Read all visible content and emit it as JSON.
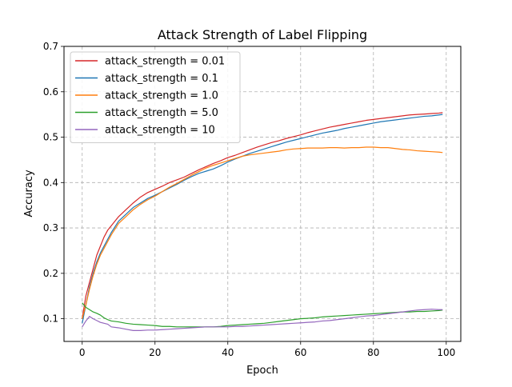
{
  "chart_data": {
    "type": "line",
    "title": "Attack Strength of Label Flipping",
    "xlabel": "Epoch",
    "ylabel": "Accuracy",
    "xlim": [
      -5,
      104
    ],
    "ylim": [
      0.05,
      0.7
    ],
    "xticks": [
      0,
      20,
      40,
      60,
      80,
      100
    ],
    "yticks": [
      0.1,
      0.2,
      0.3,
      0.4,
      0.5,
      0.6,
      0.7
    ],
    "xtick_labels": [
      "0",
      "20",
      "40",
      "60",
      "80",
      "100"
    ],
    "ytick_labels": [
      "0.1",
      "0.2",
      "0.3",
      "0.4",
      "0.5",
      "0.6",
      "0.7"
    ],
    "grid": true,
    "legend_position": "top-left",
    "series": [
      {
        "name": "attack_strength = 0.01",
        "color": "#d62728",
        "points": [
          [
            0,
            0.1
          ],
          [
            1,
            0.15
          ],
          [
            2,
            0.18
          ],
          [
            3,
            0.21
          ],
          [
            4,
            0.24
          ],
          [
            5,
            0.26
          ],
          [
            6,
            0.28
          ],
          [
            7,
            0.295
          ],
          [
            8,
            0.305
          ],
          [
            10,
            0.325
          ],
          [
            12,
            0.34
          ],
          [
            14,
            0.355
          ],
          [
            16,
            0.368
          ],
          [
            18,
            0.378
          ],
          [
            20,
            0.385
          ],
          [
            22,
            0.392
          ],
          [
            24,
            0.4
          ],
          [
            26,
            0.406
          ],
          [
            28,
            0.412
          ],
          [
            30,
            0.42
          ],
          [
            32,
            0.428
          ],
          [
            34,
            0.435
          ],
          [
            36,
            0.442
          ],
          [
            38,
            0.448
          ],
          [
            40,
            0.455
          ],
          [
            42,
            0.46
          ],
          [
            44,
            0.466
          ],
          [
            46,
            0.472
          ],
          [
            48,
            0.478
          ],
          [
            50,
            0.483
          ],
          [
            52,
            0.488
          ],
          [
            54,
            0.492
          ],
          [
            56,
            0.497
          ],
          [
            58,
            0.501
          ],
          [
            60,
            0.505
          ],
          [
            62,
            0.51
          ],
          [
            64,
            0.514
          ],
          [
            66,
            0.518
          ],
          [
            68,
            0.522
          ],
          [
            70,
            0.525
          ],
          [
            72,
            0.528
          ],
          [
            74,
            0.531
          ],
          [
            76,
            0.534
          ],
          [
            78,
            0.537
          ],
          [
            80,
            0.539
          ],
          [
            82,
            0.541
          ],
          [
            84,
            0.543
          ],
          [
            86,
            0.545
          ],
          [
            88,
            0.547
          ],
          [
            90,
            0.549
          ],
          [
            92,
            0.55
          ],
          [
            94,
            0.551
          ],
          [
            96,
            0.552
          ],
          [
            98,
            0.553
          ],
          [
            99,
            0.554
          ]
        ]
      },
      {
        "name": "attack_strength = 0.1",
        "color": "#1f77b4",
        "points": [
          [
            0,
            0.09
          ],
          [
            1,
            0.13
          ],
          [
            2,
            0.17
          ],
          [
            3,
            0.2
          ],
          [
            4,
            0.225
          ],
          [
            5,
            0.245
          ],
          [
            6,
            0.26
          ],
          [
            7,
            0.275
          ],
          [
            8,
            0.29
          ],
          [
            10,
            0.315
          ],
          [
            12,
            0.33
          ],
          [
            14,
            0.345
          ],
          [
            16,
            0.355
          ],
          [
            18,
            0.365
          ],
          [
            20,
            0.372
          ],
          [
            22,
            0.38
          ],
          [
            24,
            0.388
          ],
          [
            26,
            0.396
          ],
          [
            28,
            0.405
          ],
          [
            30,
            0.413
          ],
          [
            32,
            0.42
          ],
          [
            34,
            0.425
          ],
          [
            36,
            0.43
          ],
          [
            38,
            0.437
          ],
          [
            40,
            0.445
          ],
          [
            42,
            0.452
          ],
          [
            44,
            0.458
          ],
          [
            46,
            0.464
          ],
          [
            48,
            0.469
          ],
          [
            50,
            0.474
          ],
          [
            52,
            0.479
          ],
          [
            54,
            0.484
          ],
          [
            56,
            0.489
          ],
          [
            58,
            0.493
          ],
          [
            60,
            0.497
          ],
          [
            62,
            0.501
          ],
          [
            64,
            0.505
          ],
          [
            66,
            0.509
          ],
          [
            68,
            0.512
          ],
          [
            70,
            0.515
          ],
          [
            72,
            0.519
          ],
          [
            74,
            0.522
          ],
          [
            76,
            0.525
          ],
          [
            78,
            0.528
          ],
          [
            80,
            0.531
          ],
          [
            82,
            0.534
          ],
          [
            84,
            0.536
          ],
          [
            86,
            0.538
          ],
          [
            88,
            0.54
          ],
          [
            90,
            0.542
          ],
          [
            92,
            0.544
          ],
          [
            94,
            0.546
          ],
          [
            96,
            0.547
          ],
          [
            98,
            0.549
          ],
          [
            99,
            0.55
          ]
        ]
      },
      {
        "name": "attack_strength = 1.0",
        "color": "#ff7f0e",
        "points": [
          [
            0,
            0.1
          ],
          [
            1,
            0.13
          ],
          [
            2,
            0.165
          ],
          [
            3,
            0.195
          ],
          [
            4,
            0.22
          ],
          [
            5,
            0.24
          ],
          [
            6,
            0.255
          ],
          [
            7,
            0.27
          ],
          [
            8,
            0.285
          ],
          [
            10,
            0.31
          ],
          [
            12,
            0.325
          ],
          [
            14,
            0.34
          ],
          [
            16,
            0.352
          ],
          [
            18,
            0.362
          ],
          [
            20,
            0.37
          ],
          [
            22,
            0.38
          ],
          [
            24,
            0.39
          ],
          [
            26,
            0.398
          ],
          [
            28,
            0.407
          ],
          [
            30,
            0.416
          ],
          [
            32,
            0.424
          ],
          [
            34,
            0.432
          ],
          [
            36,
            0.438
          ],
          [
            38,
            0.443
          ],
          [
            40,
            0.448
          ],
          [
            42,
            0.453
          ],
          [
            44,
            0.458
          ],
          [
            46,
            0.461
          ],
          [
            48,
            0.463
          ],
          [
            50,
            0.465
          ],
          [
            52,
            0.467
          ],
          [
            54,
            0.469
          ],
          [
            56,
            0.472
          ],
          [
            58,
            0.474
          ],
          [
            60,
            0.475
          ],
          [
            62,
            0.476
          ],
          [
            64,
            0.476
          ],
          [
            66,
            0.476
          ],
          [
            68,
            0.477
          ],
          [
            70,
            0.477
          ],
          [
            72,
            0.476
          ],
          [
            74,
            0.477
          ],
          [
            76,
            0.477
          ],
          [
            78,
            0.478
          ],
          [
            80,
            0.478
          ],
          [
            82,
            0.477
          ],
          [
            84,
            0.477
          ],
          [
            86,
            0.475
          ],
          [
            88,
            0.473
          ],
          [
            90,
            0.472
          ],
          [
            92,
            0.47
          ],
          [
            94,
            0.469
          ],
          [
            96,
            0.468
          ],
          [
            98,
            0.467
          ],
          [
            99,
            0.466
          ]
        ]
      },
      {
        "name": "attack_strength = 5.0",
        "color": "#2ca02c",
        "points": [
          [
            0,
            0.135
          ],
          [
            1,
            0.125
          ],
          [
            2,
            0.12
          ],
          [
            3,
            0.115
          ],
          [
            4,
            0.112
          ],
          [
            5,
            0.108
          ],
          [
            6,
            0.102
          ],
          [
            7,
            0.098
          ],
          [
            8,
            0.095
          ],
          [
            10,
            0.093
          ],
          [
            12,
            0.09
          ],
          [
            14,
            0.088
          ],
          [
            16,
            0.087
          ],
          [
            18,
            0.086
          ],
          [
            20,
            0.085
          ],
          [
            22,
            0.083
          ],
          [
            24,
            0.083
          ],
          [
            26,
            0.082
          ],
          [
            28,
            0.082
          ],
          [
            30,
            0.082
          ],
          [
            32,
            0.082
          ],
          [
            34,
            0.082
          ],
          [
            36,
            0.082
          ],
          [
            38,
            0.083
          ],
          [
            40,
            0.085
          ],
          [
            42,
            0.086
          ],
          [
            44,
            0.087
          ],
          [
            46,
            0.088
          ],
          [
            48,
            0.089
          ],
          [
            50,
            0.09
          ],
          [
            52,
            0.092
          ],
          [
            54,
            0.094
          ],
          [
            56,
            0.096
          ],
          [
            58,
            0.098
          ],
          [
            60,
            0.1
          ],
          [
            62,
            0.101
          ],
          [
            64,
            0.102
          ],
          [
            66,
            0.104
          ],
          [
            68,
            0.105
          ],
          [
            70,
            0.106
          ],
          [
            72,
            0.107
          ],
          [
            74,
            0.108
          ],
          [
            76,
            0.109
          ],
          [
            78,
            0.11
          ],
          [
            80,
            0.111
          ],
          [
            82,
            0.112
          ],
          [
            84,
            0.113
          ],
          [
            86,
            0.114
          ],
          [
            88,
            0.115
          ],
          [
            90,
            0.115
          ],
          [
            92,
            0.116
          ],
          [
            94,
            0.116
          ],
          [
            96,
            0.117
          ],
          [
            98,
            0.118
          ],
          [
            99,
            0.119
          ]
        ]
      },
      {
        "name": "attack_strength = 10",
        "color": "#9467bd",
        "points": [
          [
            0,
            0.082
          ],
          [
            1,
            0.095
          ],
          [
            2,
            0.105
          ],
          [
            3,
            0.1
          ],
          [
            4,
            0.096
          ],
          [
            5,
            0.092
          ],
          [
            6,
            0.09
          ],
          [
            7,
            0.088
          ],
          [
            8,
            0.082
          ],
          [
            10,
            0.08
          ],
          [
            12,
            0.077
          ],
          [
            14,
            0.074
          ],
          [
            16,
            0.074
          ],
          [
            18,
            0.075
          ],
          [
            20,
            0.075
          ],
          [
            22,
            0.076
          ],
          [
            24,
            0.077
          ],
          [
            26,
            0.078
          ],
          [
            28,
            0.079
          ],
          [
            30,
            0.08
          ],
          [
            32,
            0.081
          ],
          [
            34,
            0.082
          ],
          [
            36,
            0.082
          ],
          [
            38,
            0.082
          ],
          [
            40,
            0.082
          ],
          [
            42,
            0.083
          ],
          [
            44,
            0.083
          ],
          [
            46,
            0.084
          ],
          [
            48,
            0.085
          ],
          [
            50,
            0.086
          ],
          [
            52,
            0.087
          ],
          [
            54,
            0.088
          ],
          [
            56,
            0.089
          ],
          [
            58,
            0.09
          ],
          [
            60,
            0.091
          ],
          [
            62,
            0.092
          ],
          [
            64,
            0.093
          ],
          [
            66,
            0.095
          ],
          [
            68,
            0.096
          ],
          [
            70,
            0.098
          ],
          [
            72,
            0.1
          ],
          [
            74,
            0.102
          ],
          [
            76,
            0.104
          ],
          [
            78,
            0.106
          ],
          [
            80,
            0.107
          ],
          [
            82,
            0.109
          ],
          [
            84,
            0.111
          ],
          [
            86,
            0.113
          ],
          [
            88,
            0.115
          ],
          [
            90,
            0.117
          ],
          [
            92,
            0.119
          ],
          [
            94,
            0.12
          ],
          [
            96,
            0.121
          ],
          [
            98,
            0.12
          ],
          [
            99,
            0.12
          ]
        ]
      }
    ]
  }
}
